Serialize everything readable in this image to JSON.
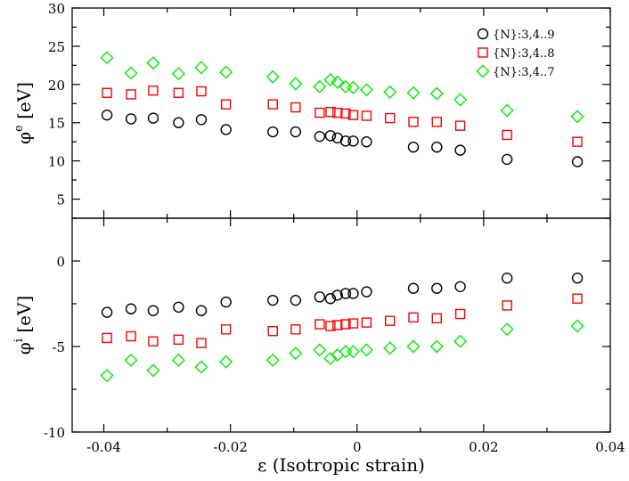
{
  "chart_data": {
    "type": "scatter",
    "title": "",
    "xlabel": "ε (Isotropic strain)",
    "xlim": [
      -0.045,
      0.04
    ],
    "xticks": [
      -0.04,
      -0.02,
      0,
      0.02,
      0.04
    ],
    "xtick_labels": [
      "-0.04",
      "-0.02",
      "0",
      "0.02",
      "0.04"
    ],
    "panels": [
      {
        "id": "top",
        "ylabel_main": "φ",
        "ylabel_sup": "e",
        "ylabel_unit": " [eV]",
        "ylim": [
          2.5,
          30
        ],
        "yticks": [
          5,
          10,
          15,
          20,
          25,
          30
        ],
        "ytick_labels": [
          "5",
          "10",
          "15",
          "20",
          "25",
          "30"
        ],
        "legend_position": "top-right",
        "series": [
          {
            "name": "{N}:3,4..9",
            "marker": "circle",
            "color": "#000000",
            "x": [
              -0.0395,
              -0.0357,
              -0.0322,
              -0.0282,
              -0.0246,
              -0.0207,
              -0.0133,
              -0.0097,
              -0.0059,
              -0.0042,
              -0.0031,
              -0.0018,
              -0.0006,
              0.0015,
              0.0089,
              0.0126,
              0.0163,
              0.0237,
              0.0348
            ],
            "y": [
              16.0,
              15.5,
              15.6,
              15.0,
              15.4,
              14.1,
              13.8,
              13.8,
              13.2,
              13.3,
              13.0,
              12.6,
              12.6,
              12.5,
              11.8,
              11.8,
              11.4,
              10.2,
              9.9
            ]
          },
          {
            "name": "{N}:3,4..8",
            "marker": "square",
            "color": "#ff0000",
            "x": [
              -0.0395,
              -0.0357,
              -0.0322,
              -0.0282,
              -0.0246,
              -0.0207,
              -0.0133,
              -0.0097,
              -0.0059,
              -0.0042,
              -0.0031,
              -0.0018,
              -0.0006,
              0.0015,
              0.0052,
              0.0089,
              0.0126,
              0.0163,
              0.0237,
              0.0348
            ],
            "y": [
              18.9,
              18.7,
              19.2,
              18.9,
              19.1,
              17.4,
              17.4,
              17.0,
              16.3,
              16.4,
              16.3,
              16.2,
              16.0,
              15.9,
              15.6,
              15.1,
              15.1,
              14.6,
              13.4,
              12.5
            ]
          },
          {
            "name": "{N}:3,4..7",
            "marker": "diamond",
            "color": "#00ee00",
            "x": [
              -0.0395,
              -0.0357,
              -0.0322,
              -0.0282,
              -0.0246,
              -0.0207,
              -0.0133,
              -0.0097,
              -0.0059,
              -0.0042,
              -0.0031,
              -0.0018,
              -0.0006,
              0.0015,
              0.0052,
              0.0089,
              0.0126,
              0.0163,
              0.0237,
              0.0348
            ],
            "y": [
              23.5,
              21.5,
              22.8,
              21.4,
              22.2,
              21.6,
              21.0,
              20.1,
              19.7,
              20.6,
              20.3,
              19.7,
              19.6,
              19.3,
              19.0,
              18.9,
              18.8,
              18.0,
              16.6,
              15.8
            ]
          }
        ]
      },
      {
        "id": "bottom",
        "ylabel_main": "φ",
        "ylabel_sup": "i",
        "ylabel_unit": " [eV]",
        "ylim": [
          -10,
          2.5
        ],
        "yticks": [
          -10,
          -5,
          0
        ],
        "ytick_labels": [
          "-10",
          "-5",
          "0"
        ],
        "series": [
          {
            "name": "{N}:3,4..9",
            "marker": "circle",
            "color": "#000000",
            "x": [
              -0.0395,
              -0.0357,
              -0.0322,
              -0.0282,
              -0.0246,
              -0.0207,
              -0.0133,
              -0.0097,
              -0.0059,
              -0.0042,
              -0.0031,
              -0.0018,
              -0.0006,
              0.0015,
              0.0089,
              0.0126,
              0.0163,
              0.0237,
              0.0348
            ],
            "y": [
              -3.0,
              -2.8,
              -2.9,
              -2.7,
              -2.9,
              -2.4,
              -2.3,
              -2.3,
              -2.1,
              -2.2,
              -2.0,
              -1.9,
              -1.9,
              -1.8,
              -1.6,
              -1.6,
              -1.5,
              -1.0,
              -1.0
            ]
          },
          {
            "name": "{N}:3,4..8",
            "marker": "square",
            "color": "#ff0000",
            "x": [
              -0.0395,
              -0.0357,
              -0.0322,
              -0.0282,
              -0.0246,
              -0.0207,
              -0.0133,
              -0.0097,
              -0.0059,
              -0.0042,
              -0.0031,
              -0.0018,
              -0.0006,
              0.0015,
              0.0052,
              0.0089,
              0.0126,
              0.0163,
              0.0237,
              0.0348
            ],
            "y": [
              -4.5,
              -4.4,
              -4.7,
              -4.6,
              -4.8,
              -4.0,
              -4.1,
              -4.0,
              -3.7,
              -3.8,
              -3.75,
              -3.7,
              -3.65,
              -3.6,
              -3.5,
              -3.3,
              -3.35,
              -3.1,
              -2.6,
              -2.2
            ]
          },
          {
            "name": "{N}:3,4..7",
            "marker": "diamond",
            "color": "#00ee00",
            "x": [
              -0.0395,
              -0.0357,
              -0.0322,
              -0.0282,
              -0.0246,
              -0.0207,
              -0.0133,
              -0.0097,
              -0.0059,
              -0.0042,
              -0.0031,
              -0.0018,
              -0.0006,
              0.0015,
              0.0052,
              0.0089,
              0.0126,
              0.0163,
              0.0237,
              0.0348
            ],
            "y": [
              -6.7,
              -5.8,
              -6.4,
              -5.8,
              -6.2,
              -5.9,
              -5.8,
              -5.4,
              -5.2,
              -5.7,
              -5.5,
              -5.3,
              -5.3,
              -5.2,
              -5.1,
              -5.0,
              -5.0,
              -4.7,
              -4.0,
              -3.8
            ]
          }
        ]
      }
    ]
  }
}
